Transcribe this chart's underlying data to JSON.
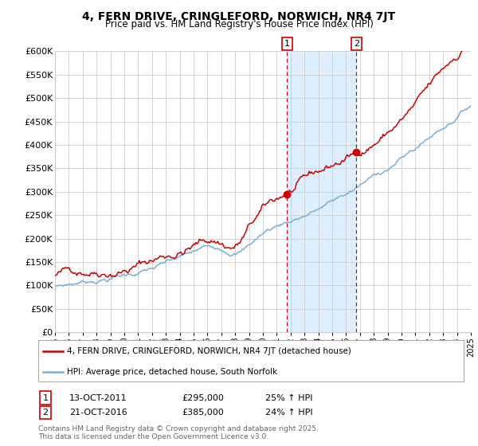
{
  "title_line1": "4, FERN DRIVE, CRINGLEFORD, NORWICH, NR4 7JT",
  "title_line2": "Price paid vs. HM Land Registry's House Price Index (HPI)",
  "ylabel_ticks": [
    "£0",
    "£50K",
    "£100K",
    "£150K",
    "£200K",
    "£250K",
    "£300K",
    "£350K",
    "£400K",
    "£450K",
    "£500K",
    "£550K",
    "£600K"
  ],
  "ytick_vals": [
    0,
    50000,
    100000,
    150000,
    200000,
    250000,
    300000,
    350000,
    400000,
    450000,
    500000,
    550000,
    600000
  ],
  "x_start_year": 1995,
  "x_end_year": 2025,
  "sale1_idx_months": 201,
  "sale2_idx_months": 261,
  "sale1_price": 295000,
  "sale2_price": 385000,
  "legend_label_red": "4, FERN DRIVE, CRINGLEFORD, NORWICH, NR4 7JT (detached house)",
  "legend_label_blue": "HPI: Average price, detached house, South Norfolk",
  "annotation1_label": "1",
  "annotation1_date": "13-OCT-2011",
  "annotation1_price": "£295,000",
  "annotation1_hpi": "25% ↑ HPI",
  "annotation2_label": "2",
  "annotation2_date": "21-OCT-2016",
  "annotation2_price": "£385,000",
  "annotation2_hpi": "24% ↑ HPI",
  "footer": "Contains HM Land Registry data © Crown copyright and database right 2025.\nThis data is licensed under the Open Government Licence v3.0.",
  "red_color": "#CC0000",
  "blue_color": "#7aaed4",
  "shade_color": "#ddeeff",
  "bg_color": "#FFFFFF",
  "grid_color": "#cccccc"
}
